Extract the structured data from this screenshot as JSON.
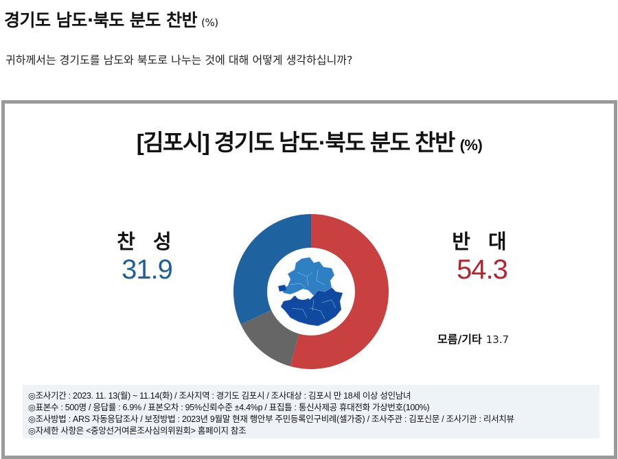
{
  "page": {
    "title": "경기도 남도·북도 분도 찬반",
    "title_unit": "(%)",
    "question": "귀하께서는 경기도를 남도와 북도로 나누는 것에 대해 어떻게 생각하십니까?"
  },
  "chart": {
    "title": "[김포시] 경기도 남도·북도 분도 찬반",
    "title_unit": "(%)",
    "labels": {
      "yes": {
        "name": "찬 성",
        "value": "31.9"
      },
      "no": {
        "name": "반 대",
        "value": "54.3"
      },
      "etc": {
        "name": "모름/기타",
        "value": "13.7"
      }
    },
    "center_image": "gyeonggi-province-map-icon"
  },
  "colors": {
    "yes": "#1f62a0",
    "no": "#c94040",
    "etc": "#666666",
    "yes_text": "#1f5f98",
    "no_text": "#b3242e",
    "map_north": "#2f7fc4",
    "map_south": "#0f4aa0",
    "frame": "#9a9a9a",
    "notes_bg": "#eef3f8"
  },
  "notes": [
    "◎조사기간 : 2023. 11. 13(월) ~ 11.14(화) / 조사지역 : 경기도 김포시 / 조사대상 : 김포시 만 18세 이상 성인남녀",
    "◎표본수 : 500명 / 응답률 : 6.9% / 표본오차 : 95%신뢰수준 ±4.4%p  / 표집틀 : 통신사제공 휴대전화 가상번호(100%)",
    "◎조사방법 : ARS 자동응답조사 / 보정방법 : 2023년 9월말 현재 행안부 주민등록인구비례(셀가중) / 조사주관 : 김포신문 / 조사기관 : 리서치뷰",
    "◎자세한 사항은 <중앙선거여론조사심의위원회> 홈페이지 참조"
  ],
  "chart_data": {
    "type": "pie",
    "subtype": "donut",
    "title": "[김포시] 경기도 남도·북도 분도 찬반 (%)",
    "categories": [
      "반대",
      "모름/기타",
      "찬성"
    ],
    "values": [
      54.3,
      13.7,
      31.9
    ],
    "colors": [
      "#c94040",
      "#666666",
      "#1f62a0"
    ],
    "start_angle": "12 o'clock, clockwise",
    "unit": "%"
  }
}
